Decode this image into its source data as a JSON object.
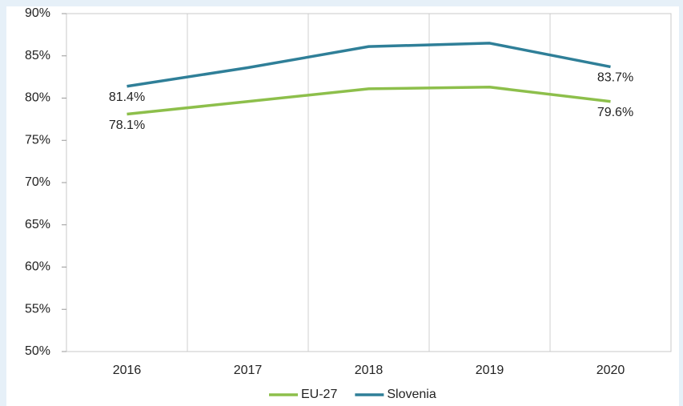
{
  "chart_data": {
    "type": "line",
    "categories": [
      "2016",
      "2017",
      "2018",
      "2019",
      "2020"
    ],
    "series": [
      {
        "name": "EU-27",
        "color": "#8dbf4b",
        "values": [
          78.1,
          79.6,
          81.1,
          81.3,
          79.6
        ],
        "value_labels": [
          "78.1%",
          null,
          null,
          null,
          "79.6%"
        ]
      },
      {
        "name": "Slovenia",
        "color": "#2f7f98",
        "values": [
          81.4,
          83.6,
          86.1,
          86.5,
          83.7
        ],
        "value_labels": [
          "81.4%",
          null,
          null,
          null,
          "83.7%"
        ]
      }
    ],
    "ylim": [
      50,
      90
    ],
    "yticks": [
      {
        "value": 50,
        "label": "50%"
      },
      {
        "value": 55,
        "label": "55%"
      },
      {
        "value": 60,
        "label": "60%"
      },
      {
        "value": 65,
        "label": "65%"
      },
      {
        "value": 70,
        "label": "70%"
      },
      {
        "value": 75,
        "label": "75%"
      },
      {
        "value": 80,
        "label": "80%"
      },
      {
        "value": 85,
        "label": "85%"
      },
      {
        "value": 90,
        "label": "90%"
      }
    ],
    "grid": "x",
    "legend": "bottom"
  }
}
